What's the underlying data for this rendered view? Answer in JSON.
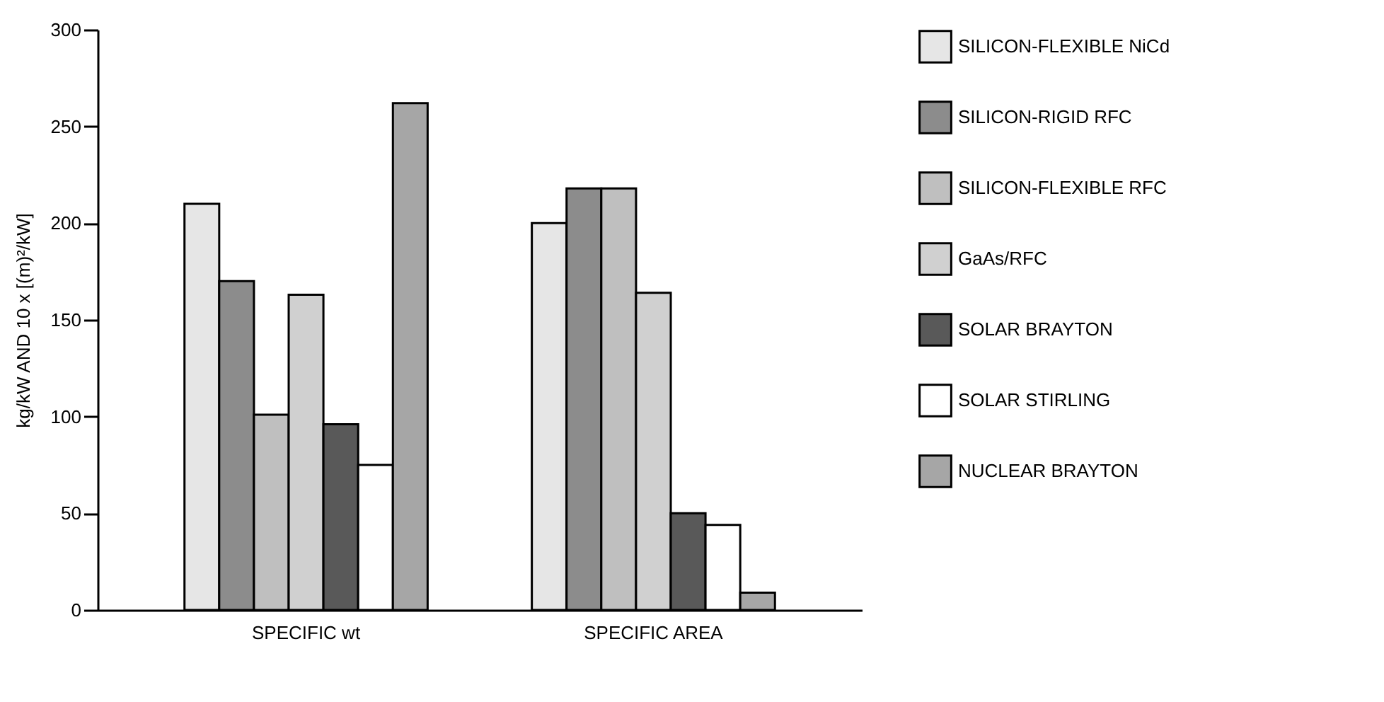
{
  "chart_data": {
    "type": "bar",
    "categories": [
      "SPECIFIC wt",
      "SPECIFIC AREA"
    ],
    "ylabel": "kg/kW AND 10 x [(m)²/kW]",
    "ylim": [
      0,
      300
    ],
    "yticks": [
      0,
      50,
      100,
      150,
      200,
      250,
      300
    ],
    "grid": false,
    "legend": "top right",
    "series": [
      {
        "name": "SILICON-FLEXIBLE NiCd",
        "color": "#e6e6e6",
        "values": [
          210,
          200
        ]
      },
      {
        "name": "SILICON-RIGID RFC",
        "color": "#8c8c8c",
        "values": [
          170,
          218
        ]
      },
      {
        "name": "SILICON-FLEXIBLE RFC",
        "color": "#bfbfbf",
        "values": [
          101,
          218
        ]
      },
      {
        "name": "GaAs/RFC",
        "color": "#d0d0d0",
        "values": [
          163,
          164
        ]
      },
      {
        "name": "SOLAR BRAYTON",
        "color": "#595959",
        "values": [
          96,
          50
        ]
      },
      {
        "name": "SOLAR STIRLING",
        "color": "#ffffff",
        "values": [
          75,
          44
        ]
      },
      {
        "name": "NUCLEAR BRAYTON",
        "color": "#a6a6a6",
        "values": [
          262,
          9
        ]
      }
    ]
  }
}
